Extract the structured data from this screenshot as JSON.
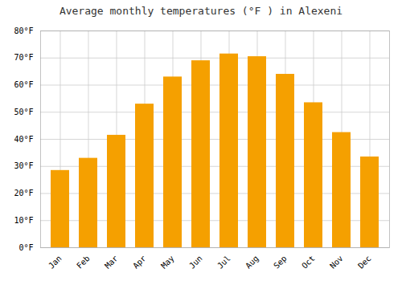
{
  "chart_data": {
    "type": "bar",
    "title": "Average monthly temperatures (°F ) in Alexeni",
    "categories": [
      "Jan",
      "Feb",
      "Mar",
      "Apr",
      "May",
      "Jun",
      "Jul",
      "Aug",
      "Sep",
      "Oct",
      "Nov",
      "Dec"
    ],
    "values": [
      28.5,
      33,
      41.5,
      53,
      63,
      69,
      71.5,
      70.5,
      64,
      53.5,
      42.5,
      33.5
    ],
    "color": "#F5A000",
    "ylim": [
      0,
      80
    ],
    "yticks": [
      {
        "value": 0,
        "label": "0°F"
      },
      {
        "value": 10,
        "label": "10°F"
      },
      {
        "value": 20,
        "label": "20°F"
      },
      {
        "value": 30,
        "label": "30°F"
      },
      {
        "value": 40,
        "label": "40°F"
      },
      {
        "value": 50,
        "label": "50°F"
      },
      {
        "value": 60,
        "label": "60°F"
      },
      {
        "value": 70,
        "label": "70°F"
      },
      {
        "value": 80,
        "label": "80°F"
      }
    ],
    "grid": true
  }
}
